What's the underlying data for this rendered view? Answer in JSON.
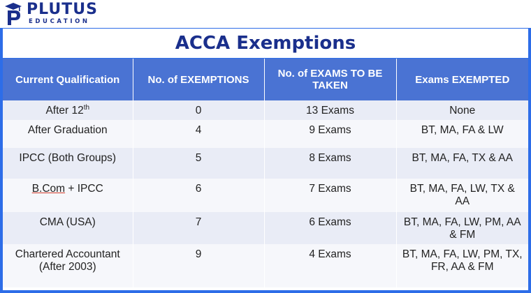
{
  "logo": {
    "name": "PLUTUS",
    "sub": "EDUCATION",
    "icon": "graduation-cap-p-icon",
    "color": "#1a2f8c"
  },
  "title": "ACCA Exemptions",
  "colors": {
    "frame": "#2d6de8",
    "header_bg": "#4a73d3",
    "row_shade": "#e9ecf6",
    "row_light": "#f6f7fb"
  },
  "table": {
    "headers": [
      "Current Qualification",
      "No. of EXEMPTIONS",
      "No. of EXAMS TO BE TAKEN",
      "Exams EXEMPTED"
    ],
    "rows": [
      {
        "qualification": "After 12",
        "qualification_sup": "th",
        "exemptions": "0",
        "exams": "13 Exams",
        "exempted": "None"
      },
      {
        "qualification": "After Graduation",
        "exemptions": "4",
        "exams": "9 Exams",
        "exempted": "BT, MA, FA & LW"
      },
      {
        "qualification": "IPCC (Both Groups)",
        "exemptions": "5",
        "exams": "8 Exams",
        "exempted": "BT, MA, FA, TX & AA"
      },
      {
        "qualification_underlined": "B.Com",
        "qualification_rest": " + IPCC",
        "exemptions": "6",
        "exams": "7 Exams",
        "exempted": "BT, MA, FA, LW, TX & AA"
      },
      {
        "qualification": "CMA (USA)",
        "exemptions": "7",
        "exams": "6 Exams",
        "exempted": "BT, MA, FA, LW, PM, AA & FM"
      },
      {
        "qualification": "Chartered Accountant (After 2003)",
        "exemptions": "9",
        "exams": "4 Exams",
        "exempted": "BT, MA, FA, LW, PM, TX, FR, AA & FM"
      }
    ]
  }
}
